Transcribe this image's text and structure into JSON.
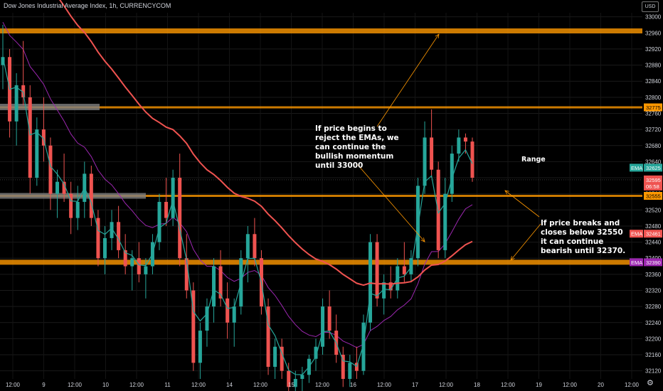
{
  "header": {
    "title": "Dow Jones Industrial Average Index, 1h, CURRENCYCOM",
    "currency": "USD"
  },
  "icons": {
    "settings": "gear-icon"
  },
  "chart_data": {
    "type": "candlestick",
    "x_ticks": [
      "12:00",
      "9",
      "12:00",
      "10",
      "12:00",
      "11",
      "12:00",
      "14",
      "12:00",
      "15",
      "12:00",
      "16",
      "12:00",
      "17",
      "12:00",
      "18",
      "12:00",
      "19",
      "12:00",
      "20",
      "12:00"
    ],
    "y_ticks": [
      33000,
      32960,
      32920,
      32880,
      32840,
      32800,
      32760,
      32720,
      32680,
      32640,
      32600,
      32560,
      32520,
      32480,
      32440,
      32400,
      32360,
      32320,
      32280,
      32240,
      32200,
      32160,
      32120
    ],
    "ylim": [
      32100,
      33010
    ],
    "levels": [
      {
        "price": 32965,
        "color": "#ff9800"
      },
      {
        "price": 32775,
        "color": "#ff9800"
      },
      {
        "price": 32555,
        "color": "#ff9800"
      },
      {
        "price": 32390,
        "color": "#ff9800"
      }
    ],
    "price_tags": [
      {
        "label": "32775",
        "price": 32775,
        "color": "#ff9800"
      },
      {
        "label": "EMA",
        "value": "32625",
        "price": 32625,
        "color": "#26a69a"
      },
      {
        "label": "32595",
        "sub": "06:58",
        "price": 32595,
        "color": "#ef5350"
      },
      {
        "label": "32555",
        "price": 32555,
        "color": "#ff9800"
      },
      {
        "label": "EMA",
        "value": "32461",
        "price": 32461,
        "color": "#ef5350"
      },
      {
        "label": "EMA",
        "value": "32390",
        "price": 32390,
        "color": "#9c27b0"
      }
    ],
    "annotations": [
      {
        "lines": [
          "If price begins to",
          "reject the EMAs, we",
          "can continue the",
          "bullish momentum",
          "until 33000"
        ]
      },
      {
        "lines": [
          "Range"
        ]
      },
      {
        "lines": [
          "If price breaks and",
          "closes below 32550",
          "it can continue",
          "bearish until 32370."
        ]
      }
    ],
    "candles": [
      [
        32880,
        32980,
        32820,
        32900
      ],
      [
        32900,
        32920,
        32700,
        32740
      ],
      [
        32740,
        32860,
        32680,
        32830
      ],
      [
        32830,
        32940,
        32780,
        32800
      ],
      [
        32800,
        32830,
        32560,
        32600
      ],
      [
        32600,
        32750,
        32580,
        32720
      ],
      [
        32720,
        32800,
        32640,
        32680
      ],
      [
        32680,
        32700,
        32520,
        32560
      ],
      [
        32560,
        32620,
        32500,
        32590
      ],
      [
        32590,
        32660,
        32540,
        32560
      ],
      [
        32560,
        32590,
        32460,
        32500
      ],
      [
        32500,
        32580,
        32470,
        32540
      ],
      [
        32540,
        32640,
        32500,
        32610
      ],
      [
        32610,
        32630,
        32480,
        32500
      ],
      [
        32500,
        32520,
        32380,
        32400
      ],
      [
        32400,
        32480,
        32360,
        32450
      ],
      [
        32450,
        32520,
        32420,
        32490
      ],
      [
        32490,
        32530,
        32400,
        32420
      ],
      [
        32420,
        32460,
        32360,
        32380
      ],
      [
        32380,
        32420,
        32320,
        32400
      ],
      [
        32400,
        32440,
        32340,
        32360
      ],
      [
        32360,
        32400,
        32300,
        32380
      ],
      [
        32380,
        32460,
        32360,
        32440
      ],
      [
        32440,
        32560,
        32420,
        32540
      ],
      [
        32540,
        32600,
        32480,
        32500
      ],
      [
        32500,
        32620,
        32480,
        32600
      ],
      [
        32600,
        32660,
        32380,
        32400
      ],
      [
        32400,
        32460,
        32300,
        32320
      ],
      [
        32320,
        32340,
        32120,
        32140
      ],
      [
        32140,
        32240,
        32100,
        32220
      ],
      [
        32220,
        32300,
        32180,
        32280
      ],
      [
        32280,
        32400,
        32240,
        32380
      ],
      [
        32380,
        32420,
        32280,
        32300
      ],
      [
        32300,
        32340,
        32200,
        32240
      ],
      [
        32240,
        32300,
        32180,
        32280
      ],
      [
        32280,
        32420,
        32260,
        32400
      ],
      [
        32400,
        32480,
        32340,
        32460
      ],
      [
        32460,
        32500,
        32380,
        32400
      ],
      [
        32400,
        32420,
        32260,
        32280
      ],
      [
        32280,
        32300,
        32110,
        32130
      ],
      [
        32130,
        32200,
        32100,
        32180
      ],
      [
        32180,
        32200,
        32100,
        32120
      ],
      [
        32120,
        32140,
        32060,
        32080
      ],
      [
        32080,
        32120,
        32040,
        32100
      ],
      [
        32100,
        32130,
        32060,
        32110
      ],
      [
        32110,
        32160,
        32090,
        32150
      ],
      [
        32150,
        32200,
        32120,
        32180
      ],
      [
        32180,
        32300,
        32160,
        32280
      ],
      [
        32280,
        32320,
        32200,
        32220
      ],
      [
        32220,
        32260,
        32140,
        32160
      ],
      [
        32160,
        32180,
        32080,
        32100
      ],
      [
        32100,
        32160,
        32080,
        32140
      ],
      [
        32140,
        32180,
        32100,
        32120
      ],
      [
        32120,
        32260,
        32110,
        32240
      ],
      [
        32240,
        32460,
        32220,
        32440
      ],
      [
        32440,
        32460,
        32280,
        32300
      ],
      [
        32300,
        32360,
        32260,
        32340
      ],
      [
        32340,
        32380,
        32300,
        32320
      ],
      [
        32320,
        32400,
        32300,
        32380
      ],
      [
        32380,
        32440,
        32340,
        32360
      ],
      [
        32360,
        32420,
        32340,
        32400
      ],
      [
        32400,
        32600,
        32380,
        32580
      ],
      [
        32580,
        32740,
        32560,
        32700
      ],
      [
        32700,
        32770,
        32600,
        32620
      ],
      [
        32620,
        32640,
        32400,
        32420
      ],
      [
        32420,
        32600,
        32400,
        32560
      ],
      [
        32560,
        32680,
        32540,
        32660
      ],
      [
        32660,
        32720,
        32640,
        32700
      ],
      [
        32700,
        32710,
        32660,
        32690
      ],
      [
        32690,
        32700,
        32590,
        32600
      ]
    ],
    "ema_fast_color": "#26a69a",
    "ema_mid_color": "#ef5350",
    "ema_slow_color": "#9c27b0"
  }
}
